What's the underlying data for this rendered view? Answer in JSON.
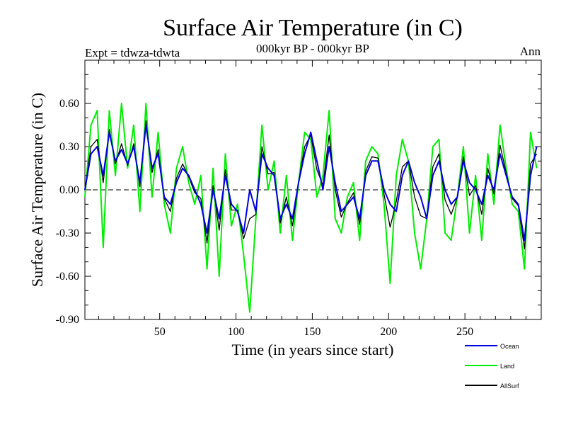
{
  "chart_data": {
    "type": "line",
    "title": "Surface Air Temperature (in C)",
    "subtitle": "000kyr BP - 000kyr BP",
    "left_label": "Expt = tdwza-tdwta",
    "right_label": "Ann",
    "xlabel": "Time (in years since start)",
    "ylabel": "Surface Air Temperature (in C)",
    "xlim": [
      1,
      300
    ],
    "ylim": [
      -0.9,
      0.9
    ],
    "xticks": [
      50,
      100,
      150,
      200,
      250
    ],
    "yticks": [
      -0.9,
      -0.6,
      -0.3,
      0.0,
      0.3,
      0.6
    ],
    "ytick_labels": [
      "-0.90",
      "-0.60",
      "-0.30",
      "0.00",
      "0.30",
      "0.60"
    ],
    "zero_line": true,
    "grid": false,
    "legend_position": "bottom-right",
    "x": [
      1,
      5,
      9,
      13,
      17,
      21,
      25,
      29,
      33,
      37,
      41,
      45,
      49,
      53,
      57,
      61,
      65,
      69,
      73,
      77,
      81,
      85,
      89,
      93,
      97,
      101,
      105,
      109,
      113,
      117,
      121,
      125,
      129,
      133,
      137,
      141,
      145,
      149,
      153,
      157,
      161,
      165,
      169,
      173,
      177,
      181,
      185,
      189,
      193,
      197,
      201,
      205,
      209,
      213,
      217,
      221,
      225,
      229,
      233,
      237,
      241,
      245,
      249,
      253,
      257,
      261,
      265,
      269,
      273,
      277,
      281,
      285,
      289,
      293,
      297
    ],
    "series": [
      {
        "name": "Ocean",
        "color": "#0000dd",
        "values": [
          0.0,
          0.25,
          0.3,
          0.1,
          0.4,
          0.2,
          0.28,
          0.18,
          0.3,
          0.05,
          0.45,
          0.15,
          0.25,
          -0.05,
          -0.1,
          0.05,
          0.15,
          0.1,
          0.0,
          -0.1,
          -0.3,
          0.0,
          -0.2,
          0.1,
          -0.1,
          -0.15,
          -0.3,
          0.0,
          -0.15,
          0.25,
          0.15,
          0.1,
          -0.2,
          -0.1,
          -0.2,
          0.05,
          0.25,
          0.4,
          0.2,
          0.0,
          0.3,
          0.05,
          -0.15,
          -0.1,
          -0.05,
          -0.2,
          0.1,
          0.2,
          0.2,
          0.0,
          -0.1,
          -0.15,
          0.1,
          0.2,
          0.05,
          -0.05,
          -0.2,
          0.1,
          0.2,
          0.0,
          -0.1,
          -0.05,
          0.2,
          0.05,
          0.0,
          -0.1,
          0.1,
          0.0,
          0.25,
          0.1,
          -0.05,
          -0.1,
          -0.35,
          0.1,
          0.3
        ]
      },
      {
        "name": "Land",
        "color": "#00ee00",
        "values": [
          -0.05,
          0.45,
          0.55,
          -0.4,
          0.55,
          0.1,
          0.6,
          0.15,
          0.45,
          -0.15,
          0.6,
          -0.05,
          0.4,
          -0.1,
          -0.3,
          0.15,
          0.3,
          0.05,
          -0.1,
          0.1,
          -0.55,
          0.15,
          -0.6,
          0.25,
          -0.25,
          -0.1,
          -0.45,
          -0.85,
          -0.2,
          0.45,
          0.0,
          0.2,
          -0.3,
          0.1,
          -0.35,
          0.05,
          0.4,
          0.35,
          -0.05,
          0.1,
          0.55,
          -0.2,
          -0.3,
          -0.05,
          0.05,
          -0.35,
          0.2,
          0.3,
          0.25,
          -0.1,
          -0.65,
          0.1,
          0.35,
          0.2,
          -0.3,
          -0.55,
          -0.2,
          0.3,
          0.35,
          -0.3,
          -0.35,
          -0.05,
          0.3,
          -0.3,
          0.1,
          -0.35,
          0.25,
          -0.1,
          0.45,
          0.15,
          -0.1,
          -0.15,
          -0.55,
          0.4,
          0.15
        ]
      },
      {
        "name": "AllSurf",
        "color": "#000000",
        "values": [
          0.0,
          0.3,
          0.35,
          0.05,
          0.42,
          0.18,
          0.32,
          0.17,
          0.32,
          0.02,
          0.48,
          0.12,
          0.28,
          -0.06,
          -0.15,
          0.08,
          0.18,
          0.09,
          -0.02,
          -0.06,
          -0.37,
          0.03,
          -0.28,
          0.14,
          -0.14,
          -0.14,
          -0.34,
          -0.2,
          -0.17,
          0.3,
          0.11,
          0.12,
          -0.23,
          -0.05,
          -0.25,
          0.05,
          0.3,
          0.38,
          0.14,
          0.03,
          0.38,
          0.0,
          -0.19,
          -0.09,
          -0.02,
          -0.24,
          0.13,
          0.23,
          0.22,
          -0.03,
          -0.26,
          -0.08,
          0.16,
          0.2,
          -0.05,
          -0.18,
          -0.2,
          0.16,
          0.25,
          -0.07,
          -0.17,
          -0.05,
          0.23,
          -0.04,
          0.03,
          -0.17,
          0.15,
          -0.03,
          0.31,
          0.12,
          -0.06,
          -0.11,
          -0.41,
          0.18,
          0.25
        ]
      }
    ]
  }
}
